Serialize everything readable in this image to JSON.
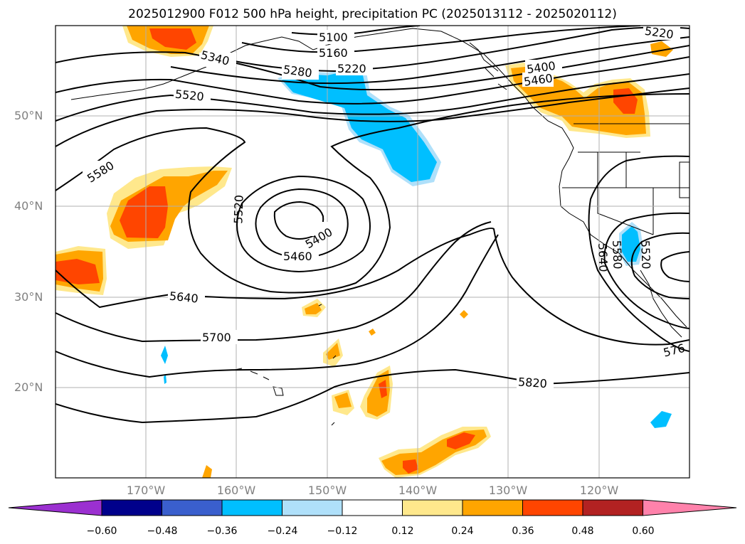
{
  "title": "2025012900 F012 500 hPa height, precipitation PC (2025013112 - 2025020112)",
  "lat_labels": [
    "50°N",
    "40°N",
    "30°N",
    "20°N"
  ],
  "lon_labels": [
    "170°W",
    "160°W",
    "150°W",
    "140°W",
    "130°W",
    "120°W"
  ],
  "contour_labels": [
    "5100",
    "5160",
    "5220",
    "5220",
    "5340",
    "5280",
    "5400",
    "5460",
    "5520",
    "5580",
    "5520",
    "5400",
    "5460",
    "5640",
    "5700",
    "5820",
    "5640",
    "5580",
    "5520",
    "576"
  ],
  "colorbar": {
    "ticks": [
      "−0.60",
      "−0.48",
      "−0.36",
      "−0.24",
      "−0.12",
      "0.12",
      "0.24",
      "0.36",
      "0.48",
      "0.60"
    ],
    "colors": [
      "#9b30d0",
      "#00008b",
      "#3a5fcd",
      "#00bfff",
      "#afe0fa",
      "#ffffff",
      "#ffe88c",
      "#ffa500",
      "#ff4500",
      "#b22222",
      "#ff82ab"
    ]
  },
  "precip_colors": {
    "light_pos": "#ffe88c",
    "mid_pos": "#ffa500",
    "high_pos": "#ff4500",
    "neg": "#00bfff",
    "light_neg": "#afe0fa"
  }
}
